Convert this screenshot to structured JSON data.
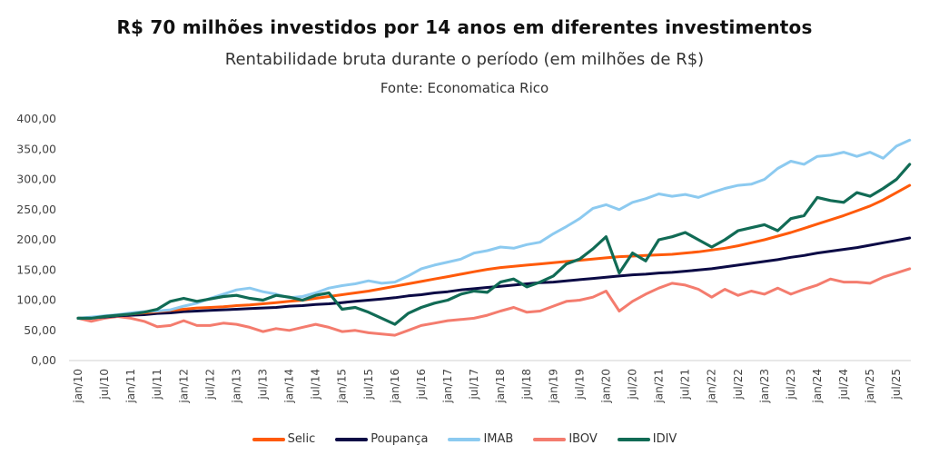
{
  "chart_data": {
    "type": "line",
    "title": "R$ 70 milhões investidos por 14 anos em diferentes investimentos",
    "subtitle": "Rentabilidade bruta durante o período (em milhões de R$)",
    "source": "Fonte: Economatica Rico",
    "xlabel": "",
    "ylabel": "",
    "ylim": [
      0,
      400
    ],
    "yticks": [
      "0,00",
      "50,00",
      "100,00",
      "150,00",
      "200,00",
      "250,00",
      "300,00",
      "350,00",
      "400,00"
    ],
    "ytick_values": [
      0,
      50,
      100,
      150,
      200,
      250,
      300,
      350,
      400
    ],
    "xticks": [
      "jan/10",
      "jul/10",
      "jan/11",
      "jul/11",
      "jan/12",
      "jul/12",
      "jan/13",
      "jul/13",
      "jan/14",
      "jul/14",
      "jan/15",
      "jul/15",
      "jan/16",
      "jul/16",
      "jan/17",
      "jul/17",
      "jan/18",
      "jul/18",
      "jan/19",
      "jul/19",
      "jan/20",
      "jul/20",
      "jan/21",
      "jul/21",
      "jan/22",
      "jul/22",
      "jan/23",
      "jul/23",
      "jan/24",
      "jul/24",
      "jan/25",
      "jul/25"
    ],
    "xtick_months": [
      0,
      6,
      12,
      18,
      24,
      30,
      36,
      42,
      48,
      54,
      60,
      66,
      72,
      78,
      84,
      90,
      96,
      102,
      108,
      114,
      120,
      126,
      132,
      138,
      144,
      150,
      156,
      162,
      168,
      174,
      180,
      186
    ],
    "x_months": [
      0,
      3,
      6,
      9,
      12,
      15,
      18,
      21,
      24,
      27,
      30,
      33,
      36,
      39,
      42,
      45,
      48,
      51,
      54,
      57,
      60,
      63,
      66,
      69,
      72,
      75,
      78,
      81,
      84,
      87,
      90,
      93,
      96,
      99,
      102,
      105,
      108,
      111,
      114,
      117,
      120,
      123,
      126,
      129,
      132,
      135,
      138,
      141,
      144,
      147,
      150,
      153,
      156,
      159,
      162,
      165,
      168,
      171,
      174,
      177,
      180,
      183,
      186,
      189
    ],
    "grid": false,
    "legend_position": "bottom",
    "series": [
      {
        "name": "Selic",
        "color": "#FF5A0A",
        "values": [
          70,
          71,
          73,
          75,
          77,
          79,
          81,
          83,
          85,
          87,
          88,
          89,
          91,
          92,
          94,
          96,
          98,
          100,
          103,
          106,
          109,
          112,
          115,
          119,
          123,
          127,
          131,
          135,
          139,
          143,
          147,
          151,
          154,
          156,
          158,
          160,
          162,
          164,
          166,
          168,
          170,
          172,
          173,
          174,
          175,
          176,
          178,
          180,
          183,
          186,
          190,
          195,
          200,
          206,
          212,
          219,
          226,
          233,
          240,
          248,
          256,
          266,
          278,
          290
        ]
      },
      {
        "name": "Poupança",
        "color": "#0B0A45",
        "values": [
          70,
          71,
          72,
          74,
          75,
          76,
          78,
          79,
          81,
          82,
          83,
          84,
          85,
          86,
          87,
          88,
          90,
          91,
          93,
          94,
          96,
          98,
          100,
          102,
          104,
          107,
          109,
          112,
          114,
          117,
          119,
          121,
          123,
          125,
          127,
          129,
          130,
          132,
          134,
          136,
          138,
          140,
          142,
          143,
          145,
          146,
          148,
          150,
          152,
          155,
          158,
          161,
          164,
          167,
          171,
          174,
          178,
          181,
          184,
          187,
          191,
          195,
          199,
          203
        ]
      },
      {
        "name": "IMAB",
        "color": "#8CCAF0",
        "values": [
          70,
          72,
          74,
          76,
          79,
          81,
          82,
          84,
          90,
          95,
          103,
          110,
          117,
          120,
          114,
          110,
          104,
          106,
          112,
          120,
          124,
          127,
          132,
          128,
          130,
          140,
          152,
          158,
          163,
          168,
          178,
          182,
          188,
          186,
          192,
          196,
          210,
          222,
          235,
          252,
          258,
          250,
          262,
          268,
          276,
          272,
          275,
          270,
          278,
          285,
          290,
          292,
          300,
          318,
          330,
          325,
          338,
          340,
          345,
          338,
          345,
          335,
          355,
          365
        ]
      },
      {
        "name": "IBOV",
        "color": "#F47C6E",
        "values": [
          70,
          65,
          70,
          73,
          70,
          65,
          56,
          58,
          66,
          58,
          58,
          62,
          60,
          55,
          48,
          53,
          50,
          55,
          60,
          55,
          48,
          50,
          46,
          44,
          42,
          50,
          58,
          62,
          66,
          68,
          70,
          75,
          82,
          88,
          80,
          82,
          90,
          98,
          100,
          105,
          115,
          82,
          98,
          110,
          120,
          128,
          125,
          118,
          105,
          118,
          108,
          115,
          110,
          120,
          110,
          118,
          125,
          135,
          130,
          130,
          128,
          138,
          145,
          152
        ]
      },
      {
        "name": "IDIV",
        "color": "#116B55",
        "values": [
          70,
          70,
          73,
          75,
          77,
          80,
          85,
          98,
          103,
          98,
          102,
          106,
          108,
          103,
          100,
          108,
          105,
          100,
          108,
          112,
          85,
          88,
          80,
          70,
          60,
          78,
          88,
          95,
          100,
          110,
          115,
          113,
          130,
          135,
          122,
          130,
          140,
          160,
          168,
          185,
          205,
          145,
          178,
          165,
          200,
          205,
          212,
          200,
          188,
          200,
          215,
          220,
          225,
          215,
          235,
          240,
          270,
          265,
          262,
          278,
          272,
          285,
          300,
          325
        ]
      }
    ]
  }
}
